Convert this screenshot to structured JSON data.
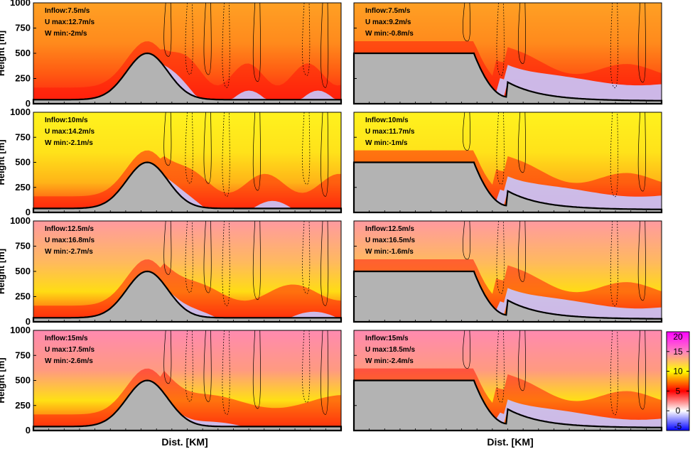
{
  "chart_data": {
    "type": "heatmap",
    "xlabel": "Dist. [KM]",
    "ylabel": "Height [m]",
    "ylim": [
      0,
      1000
    ],
    "yticks": [
      "0",
      "250",
      "500",
      "750",
      "1000"
    ],
    "colorbar": {
      "ticks": [
        "-5",
        "0",
        "5",
        "10",
        "15",
        "20"
      ],
      "range": [
        -5,
        20
      ],
      "stops": [
        {
          "value": -5,
          "color": "#0000ff"
        },
        {
          "value": 0,
          "color": "#ffffff"
        },
        {
          "value": 5,
          "color": "#ff0000"
        },
        {
          "value": 10,
          "color": "#ffff00"
        },
        {
          "value": 15,
          "color": "#ff80c0"
        },
        {
          "value": 20,
          "color": "#ff00ff"
        }
      ]
    },
    "terrain": {
      "left_column": "bell-shaped hill",
      "right_column": "plateau with lee slope",
      "peak_height": 500,
      "color": "#b3b3b3"
    },
    "panels": [
      {
        "row": 1,
        "col": 1,
        "inflow": "Inflow:7.5m/s",
        "umax": "U max:12.7m/s",
        "wmin": "W min:-2m/s"
      },
      {
        "row": 1,
        "col": 2,
        "inflow": "Inflow:7.5m/s",
        "umax": "U max:9.2m/s",
        "wmin": "W min:-0.8m/s"
      },
      {
        "row": 2,
        "col": 1,
        "inflow": "Inflow:10m/s",
        "umax": "U max:14.2m/s",
        "wmin": "W min:-2.1m/s"
      },
      {
        "row": 2,
        "col": 2,
        "inflow": "Inflow:10m/s",
        "umax": "U max:11.7m/s",
        "wmin": "W min:-1m/s"
      },
      {
        "row": 3,
        "col": 1,
        "inflow": "Inflow:12.5m/s",
        "umax": "U max:16.8m/s",
        "wmin": "W min:-2.7m/s"
      },
      {
        "row": 3,
        "col": 2,
        "inflow": "Inflow:12.5m/s",
        "umax": "U max:16.5m/s",
        "wmin": "W min:-1.6m/s"
      },
      {
        "row": 4,
        "col": 1,
        "inflow": "Inflow:15m/s",
        "umax": "U max:17.5m/s",
        "wmin": "W min:-2.6m/s"
      },
      {
        "row": 4,
        "col": 2,
        "inflow": "Inflow:15m/s",
        "umax": "U max:18.5m/s",
        "wmin": "W min:-2.4m/s"
      }
    ]
  }
}
